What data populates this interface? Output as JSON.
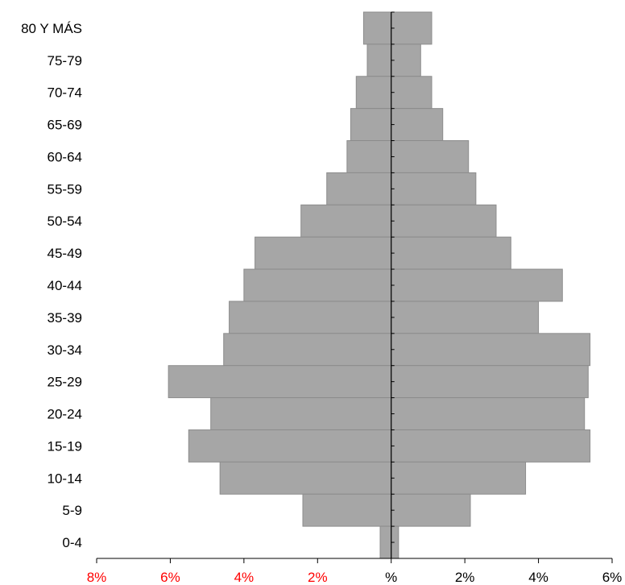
{
  "chart_data": {
    "type": "bar",
    "orientation": "horizontal",
    "subtype": "population-pyramid",
    "categories": [
      "80 Y MÁS",
      "75-79",
      "70-74",
      "65-69",
      "60-64",
      "55-59",
      "50-54",
      "45-49",
      "40-44",
      "35-39",
      "30-34",
      "25-29",
      "20-24",
      "15-19",
      "10-14",
      "5-9",
      "0-4"
    ],
    "series": [
      {
        "values": [
          0.75,
          0.65,
          0.95,
          1.1,
          1.2,
          1.75,
          2.45,
          3.7,
          4.0,
          4.4,
          4.55,
          6.05,
          4.9,
          5.5,
          4.65,
          2.4,
          0.3
        ]
      },
      {
        "values": [
          1.1,
          0.8,
          1.1,
          1.4,
          2.1,
          2.3,
          2.85,
          3.25,
          4.65,
          4.0,
          5.4,
          5.35,
          5.25,
          5.4,
          3.65,
          2.15,
          0.2
        ]
      }
    ],
    "xlim": [
      -8,
      6
    ],
    "x_ticks": [
      {
        "value": -8,
        "label": "8%",
        "color": "#ff0000"
      },
      {
        "value": -6,
        "label": "6%",
        "color": "#ff0000"
      },
      {
        "value": -4,
        "label": "4%",
        "color": "#ff0000"
      },
      {
        "value": -2,
        "label": "2%",
        "color": "#ff0000"
      },
      {
        "value": 0,
        "label": "%",
        "color": "#000000"
      },
      {
        "value": 2,
        "label": "2%",
        "color": "#000000"
      },
      {
        "value": 4,
        "label": "4%",
        "color": "#000000"
      },
      {
        "value": 6,
        "label": "6%",
        "color": "#000000"
      }
    ],
    "bar_color": "#a6a6a6",
    "grid": false,
    "legend": "none"
  }
}
